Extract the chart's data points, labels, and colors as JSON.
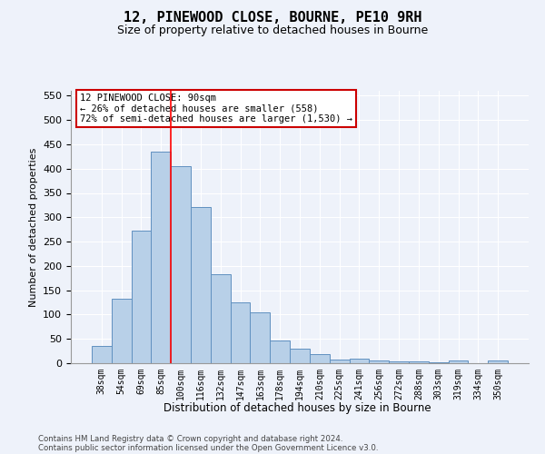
{
  "title": "12, PINEWOOD CLOSE, BOURNE, PE10 9RH",
  "subtitle": "Size of property relative to detached houses in Bourne",
  "xlabel": "Distribution of detached houses by size in Bourne",
  "ylabel": "Number of detached properties",
  "categories": [
    "38sqm",
    "54sqm",
    "69sqm",
    "85sqm",
    "100sqm",
    "116sqm",
    "132sqm",
    "147sqm",
    "163sqm",
    "178sqm",
    "194sqm",
    "210sqm",
    "225sqm",
    "241sqm",
    "256sqm",
    "272sqm",
    "288sqm",
    "303sqm",
    "319sqm",
    "334sqm",
    "350sqm"
  ],
  "values": [
    35,
    132,
    272,
    435,
    405,
    322,
    183,
    125,
    104,
    46,
    29,
    18,
    8,
    9,
    5,
    4,
    4,
    2,
    6,
    0,
    6
  ],
  "bar_color": "#b8d0e8",
  "bar_edge_color": "#6090c0",
  "background_color": "#eef2fa",
  "grid_color": "#ffffff",
  "red_line_x": 3.5,
  "annotation_line1": "12 PINEWOOD CLOSE: 90sqm",
  "annotation_line2": "← 26% of detached houses are smaller (558)",
  "annotation_line3": "72% of semi-detached houses are larger (1,530) →",
  "annotation_box_color": "#ffffff",
  "annotation_box_edge": "#cc0000",
  "ylim_max": 560,
  "yticks": [
    0,
    50,
    100,
    150,
    200,
    250,
    300,
    350,
    400,
    450,
    500,
    550
  ],
  "footer_line1": "Contains HM Land Registry data © Crown copyright and database right 2024.",
  "footer_line2": "Contains public sector information licensed under the Open Government Licence v3.0."
}
